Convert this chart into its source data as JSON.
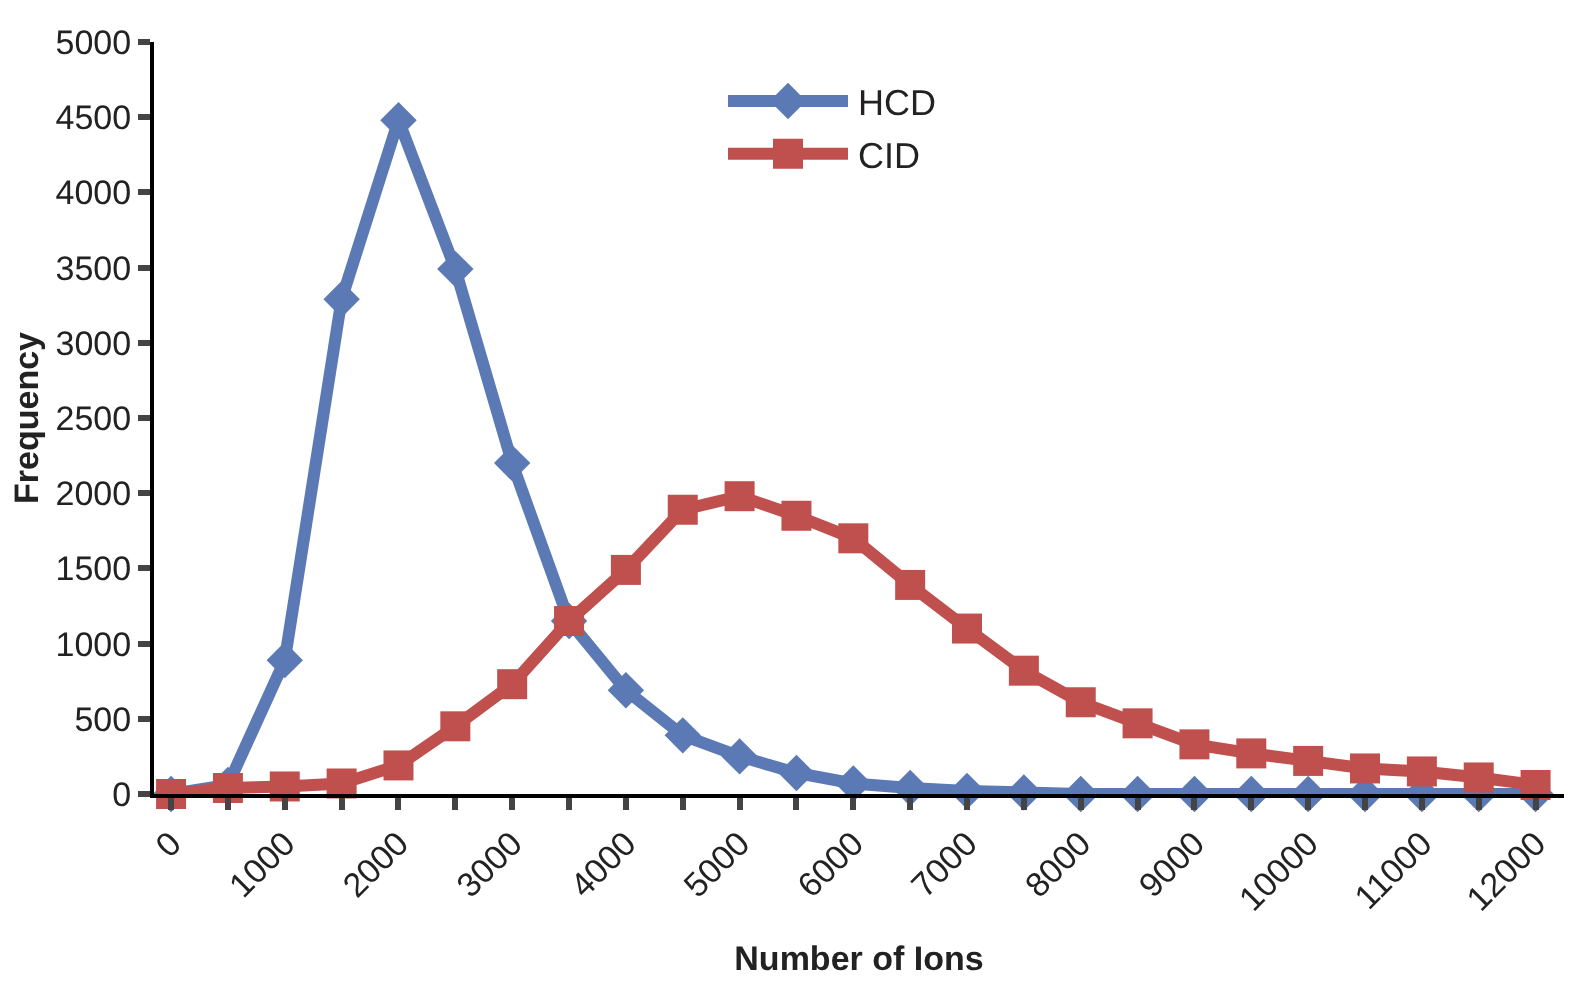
{
  "chart_data": {
    "type": "line",
    "xlabel": "Number of Ions",
    "ylabel": "Frequency",
    "x": [
      0,
      500,
      1000,
      1500,
      2000,
      2500,
      3000,
      3500,
      4000,
      4500,
      5000,
      5500,
      6000,
      6500,
      7000,
      7500,
      8000,
      8500,
      9000,
      9500,
      10000,
      10500,
      11000,
      11500,
      12000
    ],
    "series": [
      {
        "name": "HCD",
        "color": "#5b79b5",
        "marker": "diamond",
        "values": [
          0,
          60,
          890,
          3290,
          4480,
          3490,
          2200,
          1150,
          690,
          390,
          250,
          140,
          70,
          40,
          20,
          10,
          0,
          0,
          0,
          0,
          0,
          0,
          0,
          0,
          0
        ]
      },
      {
        "name": "CID",
        "color": "#c0504d",
        "marker": "square",
        "values": [
          0,
          40,
          50,
          70,
          190,
          450,
          730,
          1150,
          1490,
          1890,
          1980,
          1850,
          1700,
          1390,
          1100,
          820,
          610,
          470,
          330,
          270,
          220,
          170,
          150,
          110,
          60
        ]
      }
    ],
    "xlim": [
      -150,
      12250
    ],
    "ylim": [
      0,
      5000
    ],
    "xticks": [
      0,
      {
        "value": 500,
        "label": null
      },
      1000,
      {
        "value": 1500,
        "label": null
      },
      2000,
      {
        "value": 2500,
        "label": null
      },
      3000,
      {
        "value": 3500,
        "label": null
      },
      4000,
      {
        "value": 4500,
        "label": null
      },
      5000,
      {
        "value": 5500,
        "label": null
      },
      6000,
      {
        "value": 6500,
        "label": null
      },
      7000,
      {
        "value": 7500,
        "label": null
      },
      8000,
      {
        "value": 8500,
        "label": null
      },
      9000,
      {
        "value": 9500,
        "label": null
      },
      10000,
      {
        "value": 10500,
        "label": null
      },
      11000,
      {
        "value": 11500,
        "label": null
      },
      12000
    ],
    "yticks": [
      0,
      500,
      1000,
      1500,
      2000,
      2500,
      3000,
      3500,
      4000,
      4500,
      5000
    ],
    "legend": "top",
    "line_style": "solid"
  }
}
